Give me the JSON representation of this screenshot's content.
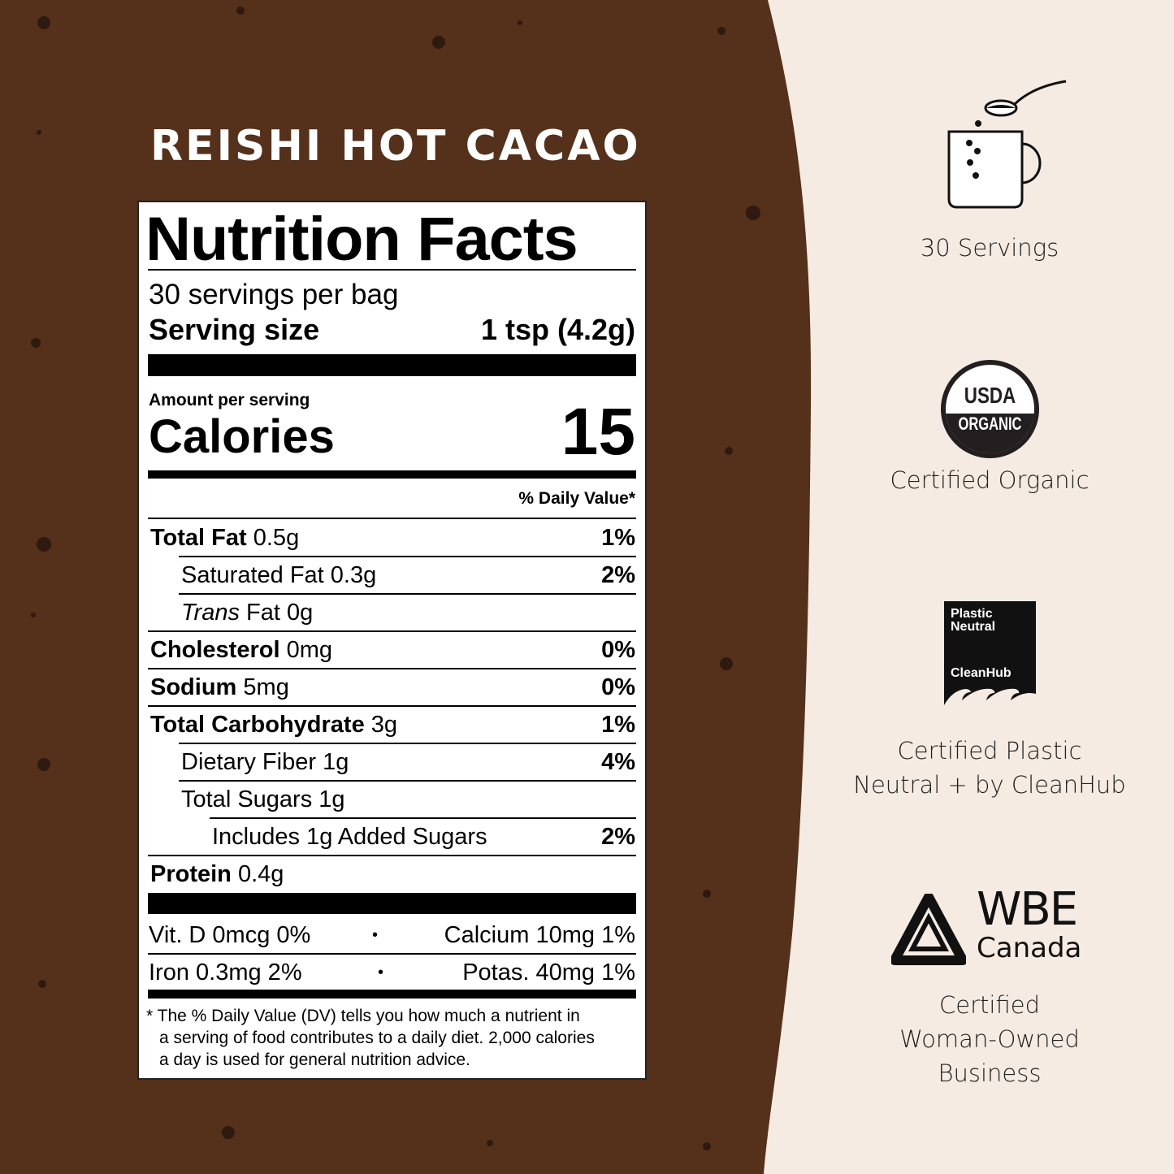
{
  "colors": {
    "brown": "#55301a",
    "cream": "#f6ebe2",
    "dots": "#2e1a0e"
  },
  "product_title": "REISHI HOT CACAO",
  "label": {
    "heading": "Nutrition Facts",
    "servings": "30 servings per bag",
    "serving_size_label": "Serving size",
    "serving_size_value": "1 tsp (4.2g)",
    "amount_per_serving": "Amount per serving",
    "calories_label": "Calories",
    "calories_value": "15",
    "dv_header": "% Daily Value*",
    "nutrients": [
      {
        "name": "Total Fat",
        "amount": "0.5g",
        "dv": "1%",
        "bold": true,
        "indent": 0
      },
      {
        "name": "Saturated Fat",
        "amount": "0.3g",
        "dv": "2%",
        "bold": false,
        "indent": 1
      },
      {
        "name": "Trans",
        "name_suffix": "Fat",
        "amount": "0g",
        "dv": "",
        "bold": false,
        "indent": 1
      },
      {
        "name": "Cholesterol",
        "amount": "0mg",
        "dv": "0%",
        "bold": true,
        "indent": 0
      },
      {
        "name": "Sodium",
        "amount": "5mg",
        "dv": "0%",
        "bold": true,
        "indent": 0
      },
      {
        "name": "Total Carbohydrate",
        "amount": "3g",
        "dv": "1%",
        "bold": true,
        "indent": 0
      },
      {
        "name": "Dietary Fiber",
        "amount": "1g",
        "dv": "4%",
        "bold": false,
        "indent": 1
      },
      {
        "name": "Total Sugars",
        "amount": "1g",
        "dv": "",
        "bold": false,
        "indent": 1
      },
      {
        "name": "Includes 1g Added Sugars",
        "amount": "",
        "dv": "2%",
        "bold": false,
        "indent": 2
      },
      {
        "name": "Protein",
        "amount": "0.4g",
        "dv": "",
        "bold": true,
        "indent": 0
      }
    ],
    "vitamins": [
      {
        "left": "Vit. D 0mcg 0%",
        "right": "Calcium 10mg 1%"
      },
      {
        "left": "Iron 0.3mg 2%",
        "right": "Potas. 40mg 1%"
      }
    ],
    "bullet": "•",
    "footnote": [
      "* The % Daily Value (DV) tells you how much a nutrient in",
      "a serving of food contributes to a daily diet. 2,000 calories",
      "a day is used for general nutrition advice."
    ]
  },
  "badges": {
    "servings": {
      "icon": "mug-spoon-icon",
      "text": "30 Servings"
    },
    "organic": {
      "icon": "usda-organic-seal",
      "logo_top": "USDA",
      "logo_bottom": "ORGANIC",
      "text": "Certified Organic"
    },
    "plastic": {
      "icon": "cleanhub-logo",
      "logo_line1": "Plastic",
      "logo_line2": "Neutral",
      "logo_brand": "CleanHub",
      "text_line1": "Certified Plastic",
      "text_line2": "Neutral + by CleanHub"
    },
    "wbe": {
      "icon": "wbe-canada-logo",
      "logo_line1": "WBE",
      "logo_line2": "Canada",
      "text_line1": "Certified",
      "text_line2": "Woman-Owned",
      "text_line3": "Business"
    }
  }
}
